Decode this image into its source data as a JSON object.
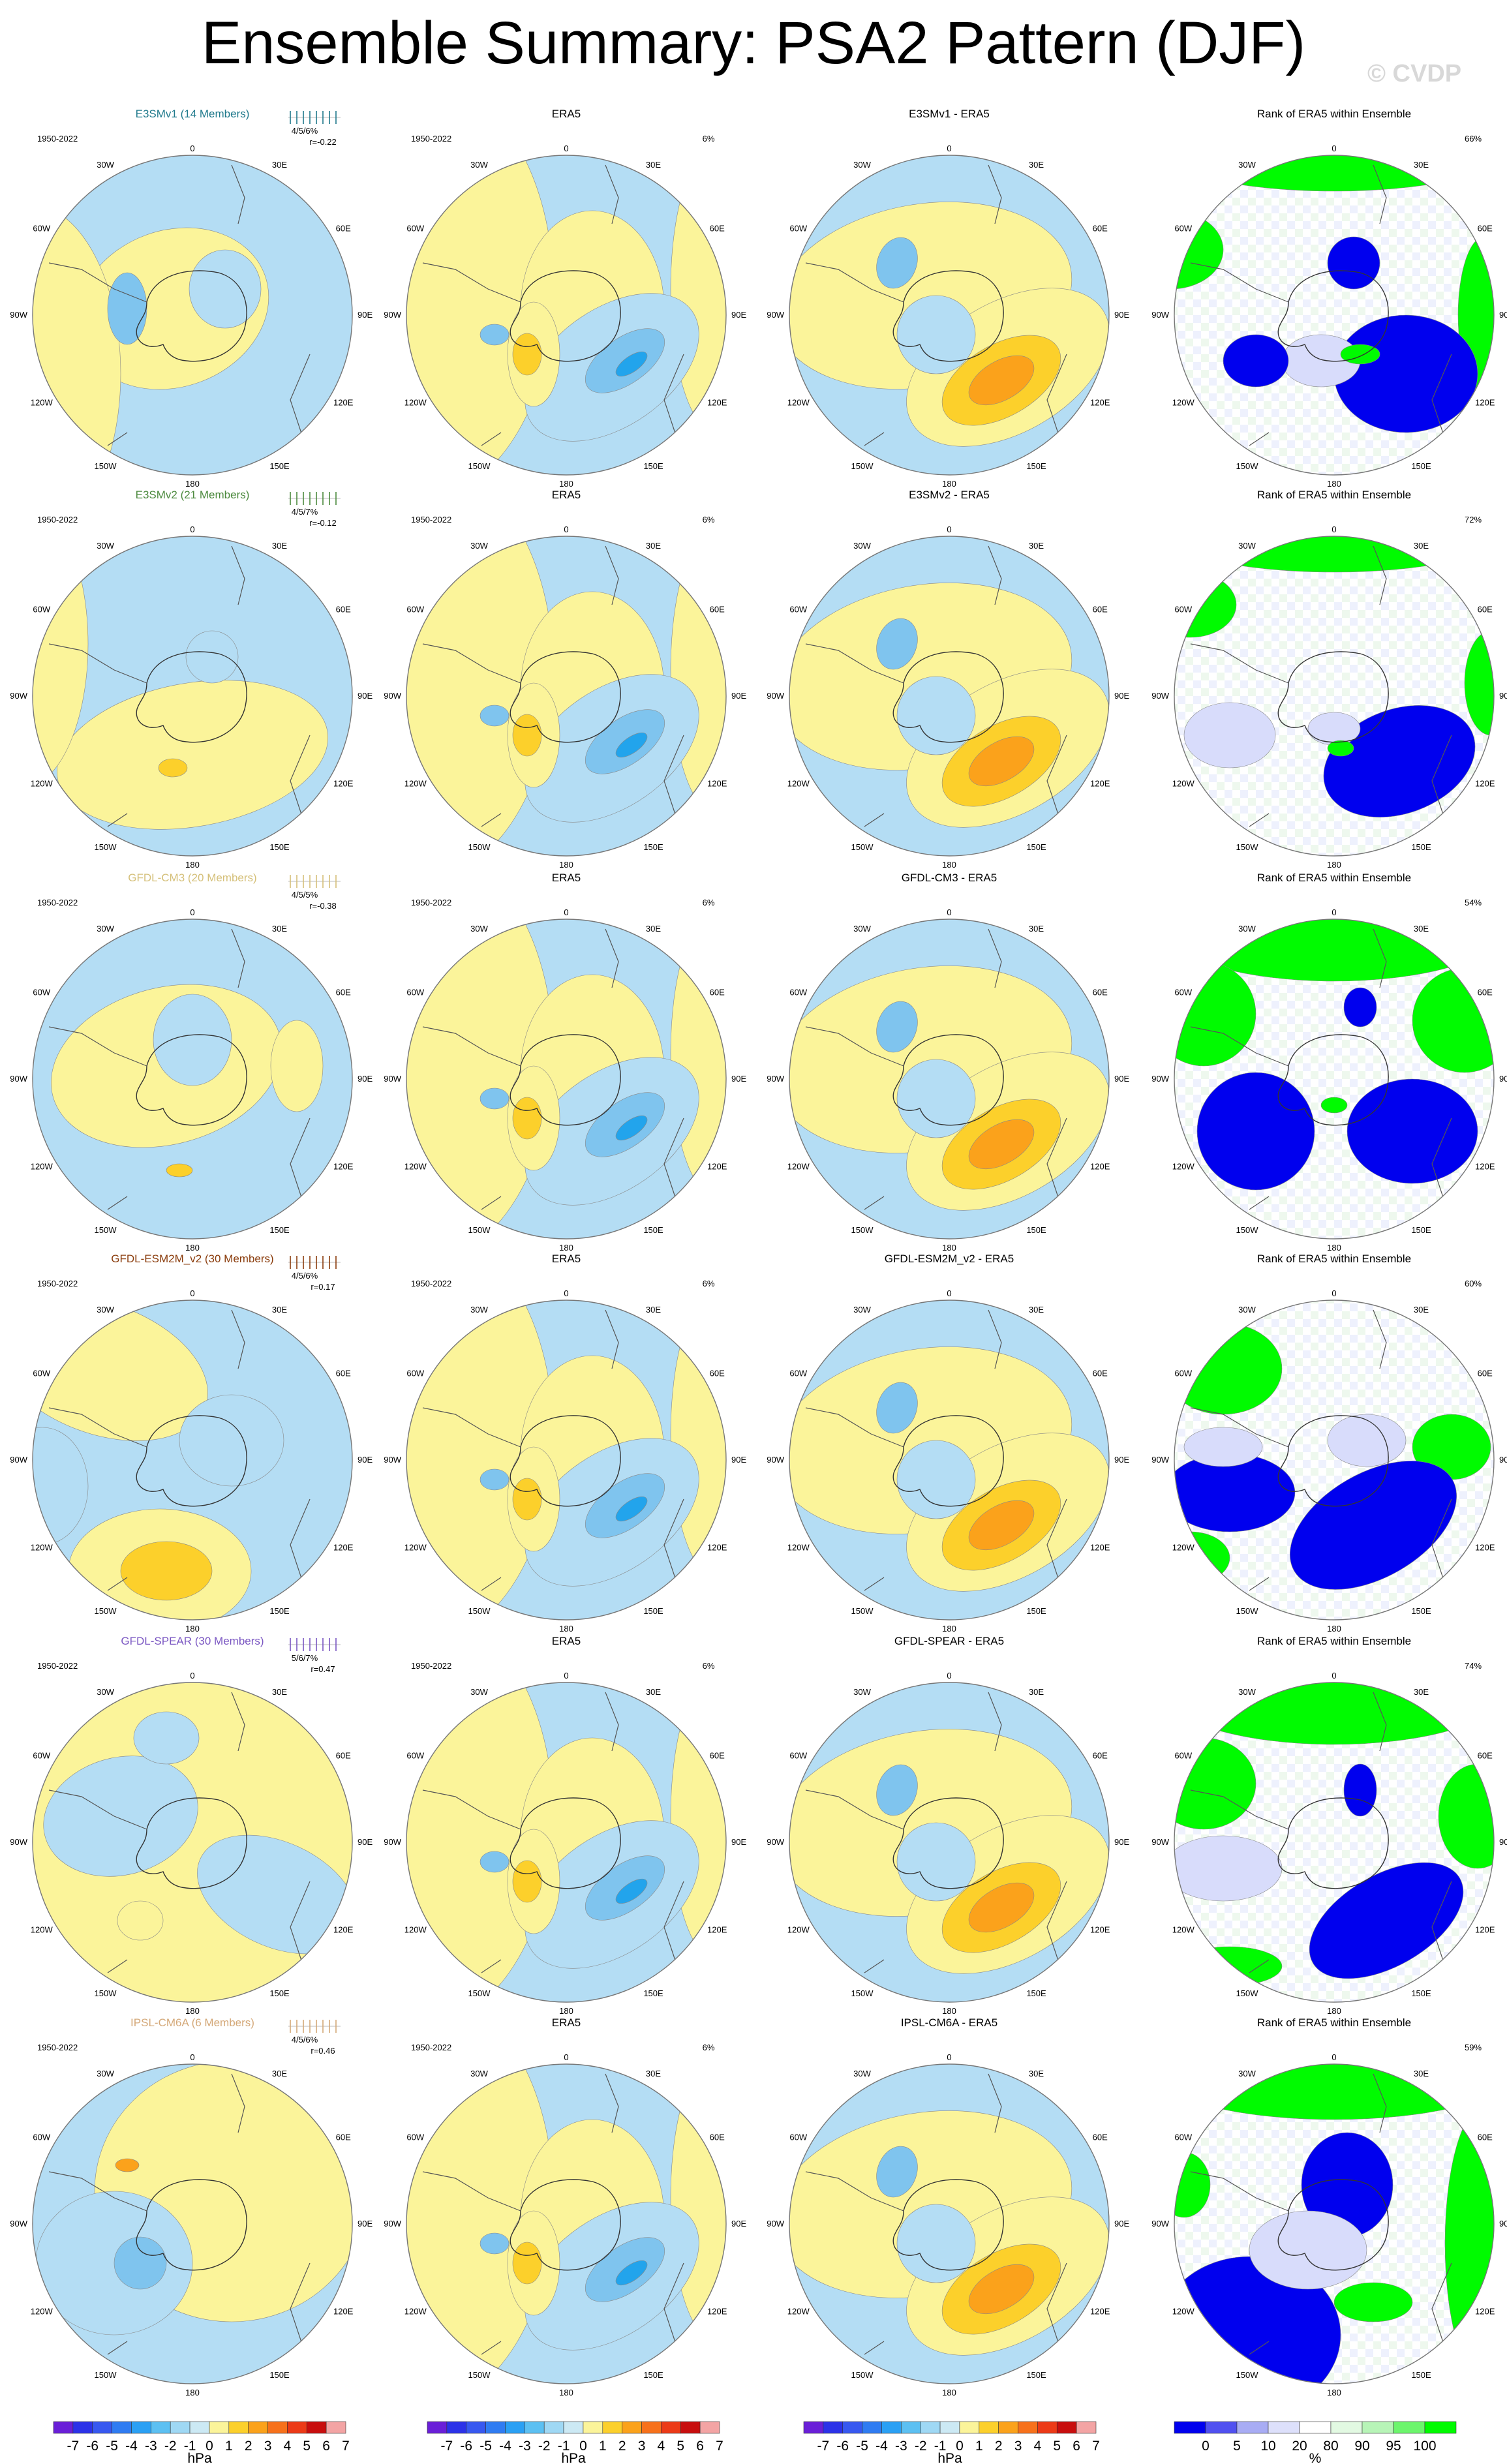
{
  "title": "Ensemble Summary: PSA2 Pattern (DJF)",
  "watermark": "© CVDP",
  "period": "1950-2022",
  "era5_label": "ERA5",
  "era5_pct": "6%",
  "rank_title": "Rank of ERA5 within Ensemble",
  "lon_labels": [
    "0",
    "30E",
    "60E",
    "90E",
    "120E",
    "150E",
    "180",
    "150W",
    "120W",
    "90W",
    "60W",
    "30W"
  ],
  "colors": {
    "light_yellow": "#fbf49a",
    "light_blue": "#b4ddf4",
    "mid_blue": "#7fc4ee",
    "deep_blue": "#22a4ec",
    "gold": "#fcd02b",
    "orange": "#fba21b",
    "rank_blue": "#0000ee",
    "rank_light": "#d8dcfb",
    "rank_green": "#00fb00",
    "rank_lightgreen": "#b9f5b9"
  },
  "chart_data": [
    {
      "type": "contour-map",
      "model": "E3SMv1",
      "model_title": "E3SMv1 (14 Members)",
      "model_color": "#207a8c",
      "stats": "4/5/6%",
      "corr": "r=-0.22",
      "diff_title": "E3SMv1 - ERA5",
      "rank_pct": "66%"
    },
    {
      "type": "contour-map",
      "model": "E3SMv2",
      "model_title": "E3SMv2 (21 Members)",
      "model_color": "#4c8a3e",
      "stats": "4/5/7%",
      "corr": "r=-0.12",
      "diff_title": "E3SMv2 - ERA5",
      "rank_pct": "72%"
    },
    {
      "type": "contour-map",
      "model": "GFDL-CM3",
      "model_title": "GFDL-CM3 (20 Members)",
      "model_color": "#d5c07a",
      "stats": "4/5/5%",
      "corr": "r=-0.38",
      "diff_title": "GFDL-CM3 - ERA5",
      "rank_pct": "54%"
    },
    {
      "type": "contour-map",
      "model": "GFDL-ESM2M_v2",
      "model_title": "GFDL-ESM2M_v2 (30 Members)",
      "model_color": "#8a3c0c",
      "stats": "4/5/6%",
      "corr": "r=0.17",
      "diff_title": "GFDL-ESM2M_v2 - ERA5",
      "rank_pct": "60%"
    },
    {
      "type": "contour-map",
      "model": "GFDL-SPEAR",
      "model_title": "GFDL-SPEAR (30 Members)",
      "model_color": "#7a56c2",
      "stats": "5/6/7%",
      "corr": "r=0.47",
      "diff_title": "GFDL-SPEAR - ERA5",
      "rank_pct": "74%"
    },
    {
      "type": "contour-map",
      "model": "IPSL-CM6A",
      "model_title": "IPSL-CM6A (6 Members)",
      "model_color": "#d4a878",
      "stats": "4/5/6%",
      "corr": "r=0.46",
      "diff_title": "IPSL-CM6A - ERA5",
      "rank_pct": "59%"
    }
  ],
  "colorbar_hpa": {
    "labels": [
      "-7",
      "-6",
      "-5",
      "-4",
      "-3",
      "-2",
      "-1",
      "0",
      "1",
      "2",
      "3",
      "4",
      "5",
      "6",
      "7"
    ],
    "unit": "hPa",
    "colors": [
      "#6a1fd8",
      "#2c32e8",
      "#3758f0",
      "#2f7cf2",
      "#2aa0f4",
      "#5cc0f2",
      "#9fd8f4",
      "#cce9f4",
      "#fbf49a",
      "#fcd02b",
      "#fba21b",
      "#f7711b",
      "#ec3a17",
      "#c80e0e",
      "#f3a4a4"
    ]
  },
  "colorbar_rank": {
    "labels": [
      "0",
      "5",
      "10",
      "20",
      "80",
      "90",
      "95",
      "100"
    ],
    "unit": "%",
    "colors": [
      "#0000ee",
      "#5050f0",
      "#a8acf4",
      "#dde0fb",
      "#ffffff",
      "#e2f9e2",
      "#b7f4b7",
      "#6cf56c",
      "#00fb00"
    ]
  }
}
